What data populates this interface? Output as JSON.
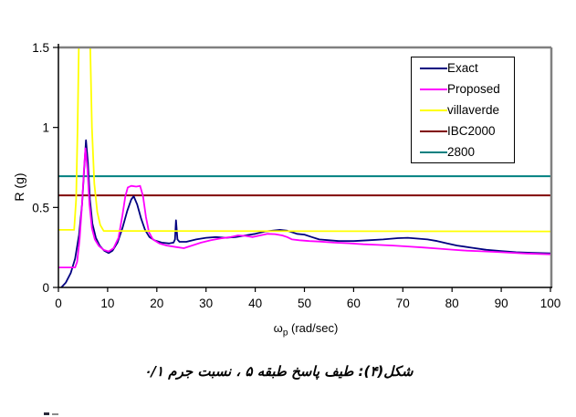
{
  "figure": {
    "caption": "شکل(۴): طیف پاسخ طبقه ۵ ، نسبت جرم ۰/۱"
  },
  "chart_data": {
    "type": "line",
    "title": "",
    "ylabel": "R (g)",
    "xlabel": {
      "symbol": "ω",
      "sub": "p",
      "unit": "(rad/sec)"
    },
    "xlim": [
      0,
      100
    ],
    "ylim": [
      0,
      1.5
    ],
    "x_ticks": [
      0,
      10,
      20,
      30,
      40,
      50,
      60,
      70,
      80,
      90,
      100
    ],
    "y_ticks": [
      0,
      0.5,
      1,
      1.5
    ],
    "y_tick_labels": [
      "0",
      "0.5",
      "1",
      "1.5"
    ],
    "grid": false,
    "legend_position": "top-right",
    "frame_color": "#808080",
    "axis_color": "#000000",
    "series": [
      {
        "name": "Exact",
        "color": "#000080",
        "kind": "curve",
        "points": [
          [
            0.6,
            0
          ],
          [
            1.5,
            0.03
          ],
          [
            2.5,
            0.09
          ],
          [
            3.4,
            0.18
          ],
          [
            4.2,
            0.33
          ],
          [
            4.8,
            0.52
          ],
          [
            5.2,
            0.72
          ],
          [
            5.6,
            0.92
          ],
          [
            6.0,
            0.78
          ],
          [
            6.4,
            0.55
          ],
          [
            6.9,
            0.4
          ],
          [
            7.6,
            0.31
          ],
          [
            8.4,
            0.26
          ],
          [
            9.3,
            0.23
          ],
          [
            10.2,
            0.215
          ],
          [
            11.0,
            0.23
          ],
          [
            12.0,
            0.28
          ],
          [
            13.0,
            0.37
          ],
          [
            14.0,
            0.48
          ],
          [
            14.8,
            0.55
          ],
          [
            15.3,
            0.57
          ],
          [
            16.0,
            0.52
          ],
          [
            16.8,
            0.43
          ],
          [
            17.6,
            0.36
          ],
          [
            18.5,
            0.315
          ],
          [
            19.5,
            0.295
          ],
          [
            21.0,
            0.28
          ],
          [
            22.5,
            0.275
          ],
          [
            23.4,
            0.28
          ],
          [
            23.7,
            0.3
          ],
          [
            23.9,
            0.42
          ],
          [
            24.2,
            0.3
          ],
          [
            24.6,
            0.285
          ],
          [
            26.0,
            0.285
          ],
          [
            28.0,
            0.3
          ],
          [
            30.0,
            0.31
          ],
          [
            32.0,
            0.315
          ],
          [
            34.0,
            0.31
          ],
          [
            36.0,
            0.315
          ],
          [
            38.0,
            0.325
          ],
          [
            40.0,
            0.335
          ],
          [
            42.0,
            0.35
          ],
          [
            43.5,
            0.355
          ],
          [
            45.0,
            0.36
          ],
          [
            46.5,
            0.355
          ],
          [
            47.5,
            0.345
          ],
          [
            48.5,
            0.335
          ],
          [
            50.0,
            0.33
          ],
          [
            51.5,
            0.315
          ],
          [
            53.0,
            0.3
          ],
          [
            55.0,
            0.295
          ],
          [
            57.0,
            0.29
          ],
          [
            60.0,
            0.29
          ],
          [
            63.0,
            0.295
          ],
          [
            66.0,
            0.3
          ],
          [
            69.0,
            0.308
          ],
          [
            71.0,
            0.31
          ],
          [
            73.0,
            0.305
          ],
          [
            75.0,
            0.3
          ],
          [
            77.0,
            0.29
          ],
          [
            79.0,
            0.275
          ],
          [
            81.0,
            0.262
          ],
          [
            84.0,
            0.248
          ],
          [
            87.0,
            0.235
          ],
          [
            90.0,
            0.227
          ],
          [
            93.0,
            0.22
          ],
          [
            96.0,
            0.217
          ],
          [
            100.0,
            0.213
          ]
        ]
      },
      {
        "name": "Proposed",
        "color": "#FF00FF",
        "kind": "curve",
        "points": [
          [
            0,
            0.125
          ],
          [
            3.4,
            0.125
          ],
          [
            3.8,
            0.16
          ],
          [
            4.3,
            0.3
          ],
          [
            4.8,
            0.52
          ],
          [
            5.2,
            0.74
          ],
          [
            5.5,
            0.87
          ],
          [
            5.9,
            0.74
          ],
          [
            6.3,
            0.52
          ],
          [
            6.8,
            0.37
          ],
          [
            7.4,
            0.3
          ],
          [
            8.2,
            0.26
          ],
          [
            9.2,
            0.235
          ],
          [
            10.2,
            0.225
          ],
          [
            11.2,
            0.245
          ],
          [
            12.2,
            0.31
          ],
          [
            13.0,
            0.45
          ],
          [
            13.6,
            0.57
          ],
          [
            14.1,
            0.625
          ],
          [
            14.8,
            0.635
          ],
          [
            15.8,
            0.63
          ],
          [
            16.6,
            0.635
          ],
          [
            17.2,
            0.57
          ],
          [
            17.8,
            0.44
          ],
          [
            18.4,
            0.345
          ],
          [
            19.2,
            0.3
          ],
          [
            20.5,
            0.275
          ],
          [
            22.0,
            0.262
          ],
          [
            24.0,
            0.252
          ],
          [
            25.5,
            0.245
          ],
          [
            27.0,
            0.26
          ],
          [
            29.0,
            0.28
          ],
          [
            31.0,
            0.295
          ],
          [
            33.0,
            0.307
          ],
          [
            35.0,
            0.315
          ],
          [
            36.5,
            0.325
          ],
          [
            38.0,
            0.322
          ],
          [
            39.5,
            0.315
          ],
          [
            41.0,
            0.325
          ],
          [
            42.5,
            0.335
          ],
          [
            44.0,
            0.333
          ],
          [
            45.5,
            0.325
          ],
          [
            46.5,
            0.315
          ],
          [
            47.5,
            0.3
          ],
          [
            49.0,
            0.295
          ],
          [
            51.0,
            0.29
          ],
          [
            53.0,
            0.287
          ],
          [
            56.0,
            0.28
          ],
          [
            59.0,
            0.276
          ],
          [
            62.0,
            0.27
          ],
          [
            65.0,
            0.266
          ],
          [
            68.0,
            0.262
          ],
          [
            71.0,
            0.256
          ],
          [
            74.0,
            0.25
          ],
          [
            77.0,
            0.243
          ],
          [
            80.0,
            0.236
          ],
          [
            83.0,
            0.23
          ],
          [
            86.0,
            0.226
          ],
          [
            89.0,
            0.222
          ],
          [
            92.0,
            0.217
          ],
          [
            95.0,
            0.212
          ],
          [
            100.0,
            0.207
          ]
        ]
      },
      {
        "name": "villaverde",
        "color": "#FFFF00",
        "kind": "curve",
        "points": [
          [
            0,
            0.36
          ],
          [
            3.2,
            0.36
          ],
          [
            3.6,
            0.55
          ],
          [
            3.9,
            1.0
          ],
          [
            4.2,
            1.6
          ],
          [
            4.5,
            2.3
          ],
          [
            6.1,
            2.3
          ],
          [
            6.4,
            1.6
          ],
          [
            6.8,
            1.0
          ],
          [
            7.3,
            0.65
          ],
          [
            7.9,
            0.47
          ],
          [
            8.5,
            0.39
          ],
          [
            9.2,
            0.353
          ],
          [
            100,
            0.35
          ]
        ]
      },
      {
        "name": "IBC2000",
        "color": "#800000",
        "kind": "hline",
        "value": 0.575
      },
      {
        "name": "2800",
        "color": "#008080",
        "kind": "hline",
        "value": 0.695
      }
    ]
  },
  "fragments": {
    "note": "cut-off text at bottom edge"
  }
}
